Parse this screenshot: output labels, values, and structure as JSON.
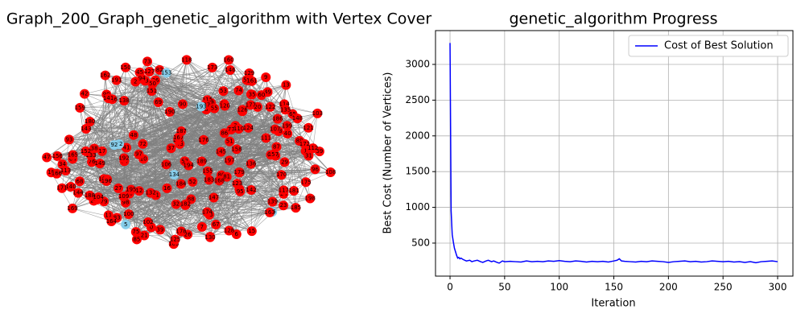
{
  "chart_data": [
    {
      "type": "network",
      "title": "Graph_200_Graph_genetic_algorithm with Vertex Cover",
      "nodes": [
        0,
        1,
        2,
        3,
        4,
        5,
        6,
        7,
        8,
        9,
        10,
        11,
        12,
        13,
        14,
        15,
        16,
        17,
        18,
        19,
        20,
        21,
        22,
        23,
        24,
        25,
        26,
        27,
        28,
        29,
        30,
        31,
        32,
        33,
        34,
        35,
        36,
        37,
        38,
        39,
        40,
        41,
        42,
        43,
        44,
        45,
        46,
        47,
        48,
        49,
        50,
        51,
        52,
        53,
        54,
        55,
        56,
        57,
        58,
        59,
        60,
        61,
        62,
        63,
        64,
        65,
        66,
        67,
        68,
        69,
        70,
        71,
        72,
        73,
        74,
        75,
        76,
        77,
        78,
        79,
        80,
        81,
        82,
        83,
        84,
        85,
        86,
        87,
        88,
        89,
        90,
        91,
        92,
        93,
        94,
        95,
        96,
        97,
        98,
        99,
        100,
        101,
        102,
        103,
        104,
        105,
        106,
        107,
        108,
        109,
        110,
        111,
        112,
        113,
        114,
        115,
        116,
        117,
        118,
        119,
        120,
        121,
        122,
        123,
        124,
        125,
        126,
        127,
        128,
        129,
        130,
        131,
        132,
        133,
        134,
        135,
        136,
        137,
        138,
        139,
        140,
        141,
        142,
        143,
        144,
        145,
        146,
        147,
        148,
        149,
        150,
        151,
        152,
        153,
        154,
        155,
        156,
        157,
        158,
        159,
        160,
        161,
        162,
        163,
        164,
        165,
        166,
        167,
        168,
        169,
        170,
        171,
        172,
        173,
        174,
        175,
        176,
        177,
        178,
        179,
        180,
        181,
        182,
        183,
        184,
        185,
        186,
        187,
        188,
        189,
        190,
        191,
        192,
        193,
        194,
        195,
        196,
        197,
        198,
        199
      ],
      "cover": [
        5,
        62,
        66,
        92,
        134,
        153,
        193
      ],
      "node_color": "#ff0000",
      "cover_color": "#87ceeb",
      "edge_color": "#808080"
    },
    {
      "type": "line",
      "title": "genetic_algorithm Progress",
      "xlabel": "Iteration",
      "ylabel": "Best Cost (Number of Vertices)",
      "x": [
        0,
        1,
        2,
        3,
        4,
        5,
        6,
        7,
        8,
        9,
        10,
        12,
        15,
        18,
        20,
        22,
        25,
        28,
        30,
        33,
        35,
        38,
        40,
        43,
        45,
        48,
        50,
        55,
        60,
        65,
        70,
        75,
        80,
        85,
        90,
        95,
        100,
        105,
        110,
        115,
        120,
        125,
        130,
        135,
        140,
        145,
        150,
        153,
        155,
        157,
        160,
        165,
        170,
        175,
        180,
        185,
        190,
        195,
        200,
        205,
        210,
        215,
        220,
        225,
        230,
        235,
        240,
        245,
        250,
        255,
        260,
        265,
        270,
        275,
        280,
        285,
        290,
        295,
        300
      ],
      "series": [
        {
          "name": "Cost of Best Solution",
          "color": "#0000ff",
          "values": [
            3300,
            950,
            620,
            520,
            430,
            380,
            330,
            290,
            300,
            280,
            290,
            270,
            250,
            260,
            240,
            250,
            260,
            240,
            230,
            250,
            260,
            240,
            250,
            230,
            220,
            250,
            240,
            245,
            240,
            235,
            250,
            240,
            245,
            240,
            250,
            245,
            255,
            245,
            240,
            250,
            245,
            235,
            245,
            240,
            245,
            235,
            250,
            260,
            280,
            250,
            245,
            240,
            235,
            245,
            240,
            250,
            245,
            240,
            230,
            240,
            245,
            250,
            240,
            245,
            235,
            240,
            250,
            245,
            240,
            245,
            235,
            240,
            230,
            240,
            225,
            240,
            245,
            250,
            240
          ]
        }
      ],
      "xlim": [
        -13.3,
        314
      ],
      "ylim": [
        38,
        3473
      ],
      "xticks": [
        0,
        50,
        100,
        150,
        200,
        250,
        300
      ],
      "yticks": [
        500,
        1000,
        1500,
        2000,
        2500,
        3000
      ],
      "grid": true,
      "legend": "upper right"
    }
  ]
}
